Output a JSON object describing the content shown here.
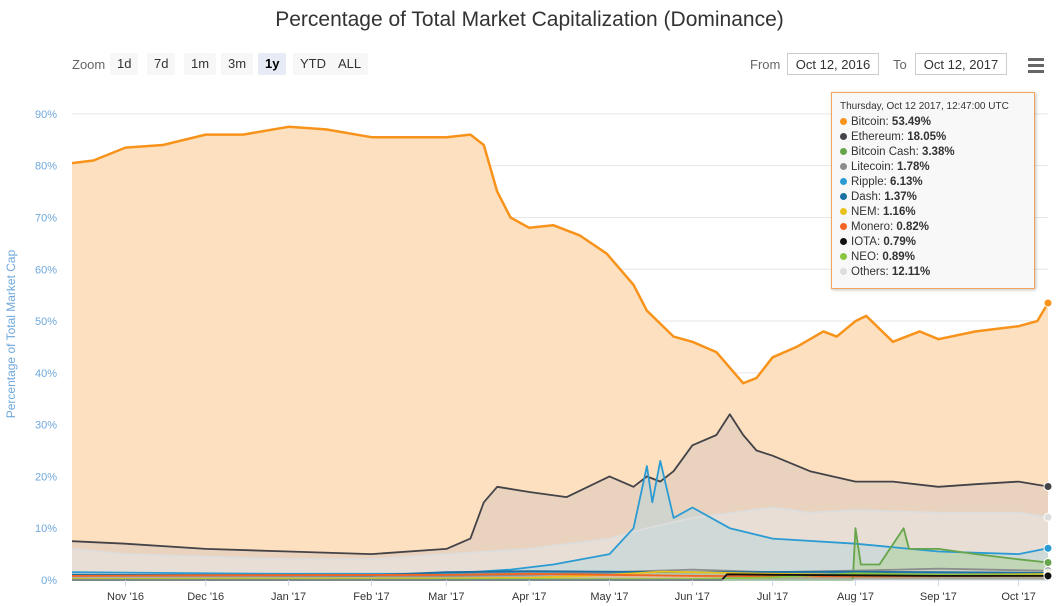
{
  "chart_data": {
    "type": "area",
    "title": "Percentage of Total Market Capitalization (Dominance)",
    "ylabel": "Percentage of Total Market Cap",
    "ylim": [
      0,
      95
    ],
    "yticks": [
      "0%",
      "10%",
      "20%",
      "30%",
      "40%",
      "50%",
      "60%",
      "70%",
      "80%",
      "90%"
    ],
    "yticks_values": [
      0,
      10,
      20,
      30,
      40,
      50,
      60,
      70,
      80,
      90
    ],
    "xlim": [
      "2016-10-12",
      "2017-10-12"
    ],
    "xticks": [
      {
        "date": "2016-11-01",
        "label": "Nov '16"
      },
      {
        "date": "2016-12-01",
        "label": "Dec '16"
      },
      {
        "date": "2017-01-01",
        "label": "Jan '17"
      },
      {
        "date": "2017-02-01",
        "label": "Feb '17"
      },
      {
        "date": "2017-03-01",
        "label": "Mar '17"
      },
      {
        "date": "2017-04-01",
        "label": "Apr '17"
      },
      {
        "date": "2017-05-01",
        "label": "May '17"
      },
      {
        "date": "2017-06-01",
        "label": "Jun '17"
      },
      {
        "date": "2017-07-01",
        "label": "Jul '17"
      },
      {
        "date": "2017-08-01",
        "label": "Aug '17"
      },
      {
        "date": "2017-09-01",
        "label": "Sep '17"
      },
      {
        "date": "2017-10-01",
        "label": "Oct '17"
      }
    ],
    "grid": true,
    "series": [
      {
        "name": "Bitcoin",
        "color": "#f7931a",
        "fill": "#fde0c0",
        "x": [
          "2016-10-12",
          "2016-10-20",
          "2016-11-01",
          "2016-11-15",
          "2016-12-01",
          "2016-12-15",
          "2017-01-01",
          "2017-01-15",
          "2017-02-01",
          "2017-02-15",
          "2017-03-01",
          "2017-03-10",
          "2017-03-15",
          "2017-03-20",
          "2017-03-25",
          "2017-04-01",
          "2017-04-10",
          "2017-04-20",
          "2017-04-30",
          "2017-05-10",
          "2017-05-15",
          "2017-05-25",
          "2017-06-01",
          "2017-06-10",
          "2017-06-15",
          "2017-06-20",
          "2017-06-25",
          "2017-07-01",
          "2017-07-10",
          "2017-07-20",
          "2017-07-25",
          "2017-08-01",
          "2017-08-05",
          "2017-08-15",
          "2017-08-25",
          "2017-09-01",
          "2017-09-15",
          "2017-10-01",
          "2017-10-08",
          "2017-10-12"
        ],
        "values": [
          80.5,
          81,
          83.5,
          84,
          86,
          86,
          87.5,
          87,
          85.5,
          85.5,
          85.5,
          86,
          84,
          75,
          70,
          68,
          68.5,
          66.5,
          63,
          57,
          52,
          47,
          46,
          44,
          41,
          38,
          39,
          43,
          45,
          48,
          47,
          50,
          51,
          46,
          48,
          46.5,
          48,
          49,
          50,
          53.49
        ]
      },
      {
        "name": "Ethereum",
        "color": "#434348",
        "fill": "#dbc8bb",
        "x": [
          "2016-10-12",
          "2016-11-01",
          "2016-12-01",
          "2017-01-01",
          "2017-02-01",
          "2017-03-01",
          "2017-03-10",
          "2017-03-15",
          "2017-03-20",
          "2017-04-01",
          "2017-04-15",
          "2017-05-01",
          "2017-05-10",
          "2017-05-15",
          "2017-05-20",
          "2017-05-25",
          "2017-06-01",
          "2017-06-10",
          "2017-06-15",
          "2017-06-20",
          "2017-06-25",
          "2017-07-01",
          "2017-07-15",
          "2017-08-01",
          "2017-08-15",
          "2017-09-01",
          "2017-09-15",
          "2017-10-01",
          "2017-10-12"
        ],
        "values": [
          7.5,
          7,
          6,
          5.5,
          5,
          6,
          8,
          15,
          18,
          17,
          16,
          20,
          18,
          20,
          19,
          21,
          26,
          28,
          32,
          28,
          25,
          24,
          21,
          19,
          19,
          18,
          18.5,
          19,
          18.05
        ]
      },
      {
        "name": "Bitcoin Cash",
        "color": "#66a54b",
        "fill": "#b7d49c",
        "x": [
          "2016-10-12",
          "2017-07-31",
          "2017-08-01",
          "2017-08-03",
          "2017-08-10",
          "2017-08-19",
          "2017-08-21",
          "2017-09-01",
          "2017-09-15",
          "2017-10-01",
          "2017-10-12"
        ],
        "values": [
          0,
          0,
          10,
          3,
          3,
          10,
          6,
          6,
          5,
          4,
          3.38
        ]
      },
      {
        "name": "Litecoin",
        "color": "#8c8c8c",
        "fill": "#cfcfcf",
        "x": [
          "2016-10-12",
          "2017-03-01",
          "2017-04-01",
          "2017-05-01",
          "2017-06-01",
          "2017-07-01",
          "2017-08-01",
          "2017-09-01",
          "2017-10-12"
        ],
        "values": [
          0.8,
          0.8,
          1.0,
          1.5,
          2.0,
          1.5,
          1.8,
          2.2,
          1.78
        ]
      },
      {
        "name": "Ripple",
        "color": "#2b9bd4",
        "fill": "#b9d6d9",
        "x": [
          "2016-10-12",
          "2016-12-01",
          "2017-01-01",
          "2017-03-01",
          "2017-03-25",
          "2017-04-10",
          "2017-05-01",
          "2017-05-10",
          "2017-05-15",
          "2017-05-17",
          "2017-05-20",
          "2017-05-25",
          "2017-06-01",
          "2017-06-15",
          "2017-07-01",
          "2017-08-01",
          "2017-09-01",
          "2017-10-01",
          "2017-10-12"
        ],
        "values": [
          1.5,
          1.3,
          1.2,
          1.2,
          2.0,
          3.0,
          5,
          10,
          22,
          15,
          23,
          12,
          14,
          10,
          8,
          7,
          5.5,
          5,
          6.13
        ]
      },
      {
        "name": "Dash",
        "color": "#1a6fa3",
        "fill": "#1a6fa3",
        "x": [
          "2016-10-12",
          "2017-02-01",
          "2017-03-01",
          "2017-04-01",
          "2017-06-01",
          "2017-08-01",
          "2017-10-12"
        ],
        "values": [
          1.0,
          0.9,
          1.5,
          1.7,
          1.5,
          1.6,
          1.37
        ]
      },
      {
        "name": "NEM",
        "color": "#e8c21a",
        "fill": "#f3e29a",
        "x": [
          "2016-10-12",
          "2017-03-01",
          "2017-04-01",
          "2017-05-01",
          "2017-05-20",
          "2017-06-01",
          "2017-07-01",
          "2017-08-01",
          "2017-09-01",
          "2017-10-12"
        ],
        "values": [
          0.2,
          0.3,
          0.4,
          1.0,
          1.6,
          1.5,
          1.2,
          1.0,
          1.0,
          1.16
        ]
      },
      {
        "name": "Monero",
        "color": "#f26522",
        "fill": "#f9b890",
        "x": [
          "2016-10-12",
          "2016-12-01",
          "2017-03-01",
          "2017-04-01",
          "2017-06-01",
          "2017-08-01",
          "2017-10-12"
        ],
        "values": [
          0.8,
          0.9,
          1.0,
          1.2,
          0.8,
          0.7,
          0.82
        ]
      },
      {
        "name": "IOTA",
        "color": "#111111",
        "fill": "#888888",
        "x": [
          "2016-10-12",
          "2017-06-12",
          "2017-06-14",
          "2017-07-01",
          "2017-08-01",
          "2017-09-01",
          "2017-10-12"
        ],
        "values": [
          0,
          0,
          1.1,
          1.0,
          0.9,
          0.8,
          0.79
        ]
      },
      {
        "name": "NEO",
        "color": "#8ac53f",
        "fill": "#cbe5a8",
        "x": [
          "2016-10-12",
          "2017-06-01",
          "2017-07-01",
          "2017-08-01",
          "2017-09-01",
          "2017-10-12"
        ],
        "values": [
          0.1,
          0.2,
          0.5,
          1.3,
          1.0,
          0.89
        ]
      },
      {
        "name": "Others",
        "color": "#dddddd",
        "fill": "#e8e8e8",
        "x": [
          "2016-10-12",
          "2016-11-01",
          "2016-12-01",
          "2017-01-01",
          "2017-02-01",
          "2017-03-01",
          "2017-04-01",
          "2017-05-01",
          "2017-05-15",
          "2017-06-01",
          "2017-07-01",
          "2017-07-15",
          "2017-08-01",
          "2017-09-01",
          "2017-10-01",
          "2017-10-12"
        ],
        "values": [
          6,
          5,
          4.5,
          4,
          4,
          5,
          6,
          8,
          10,
          12,
          14,
          13,
          13.5,
          13,
          13,
          12.11
        ]
      }
    ]
  },
  "toolbar": {
    "zoom_label": "Zoom",
    "zoom_buttons": [
      "1d",
      "7d",
      "1m",
      "3m",
      "1y",
      "YTD",
      "ALL"
    ],
    "active_zoom": "1y",
    "from_label": "From",
    "to_label": "To",
    "from_value": "Oct 12, 2016",
    "to_value": "Oct 12, 2017"
  },
  "tooltip": {
    "header": "Thursday, Oct 12 2017, 12:47:00 UTC",
    "rows": [
      {
        "name": "Bitcoin",
        "value": "53.49%",
        "color": "#f7931a"
      },
      {
        "name": "Ethereum",
        "value": "18.05%",
        "color": "#434348"
      },
      {
        "name": "Bitcoin Cash",
        "value": "3.38%",
        "color": "#66a54b"
      },
      {
        "name": "Litecoin",
        "value": "1.78%",
        "color": "#8c8c8c"
      },
      {
        "name": "Ripple",
        "value": "6.13%",
        "color": "#2b9bd4"
      },
      {
        "name": "Dash",
        "value": "1.37%",
        "color": "#1a6fa3"
      },
      {
        "name": "NEM",
        "value": "1.16%",
        "color": "#e8c21a"
      },
      {
        "name": "Monero",
        "value": "0.82%",
        "color": "#f26522"
      },
      {
        "name": "IOTA",
        "value": "0.79%",
        "color": "#111111"
      },
      {
        "name": "NEO",
        "value": "0.89%",
        "color": "#8ac53f"
      },
      {
        "name": "Others",
        "value": "12.11%",
        "color": "#dddddd"
      }
    ]
  }
}
